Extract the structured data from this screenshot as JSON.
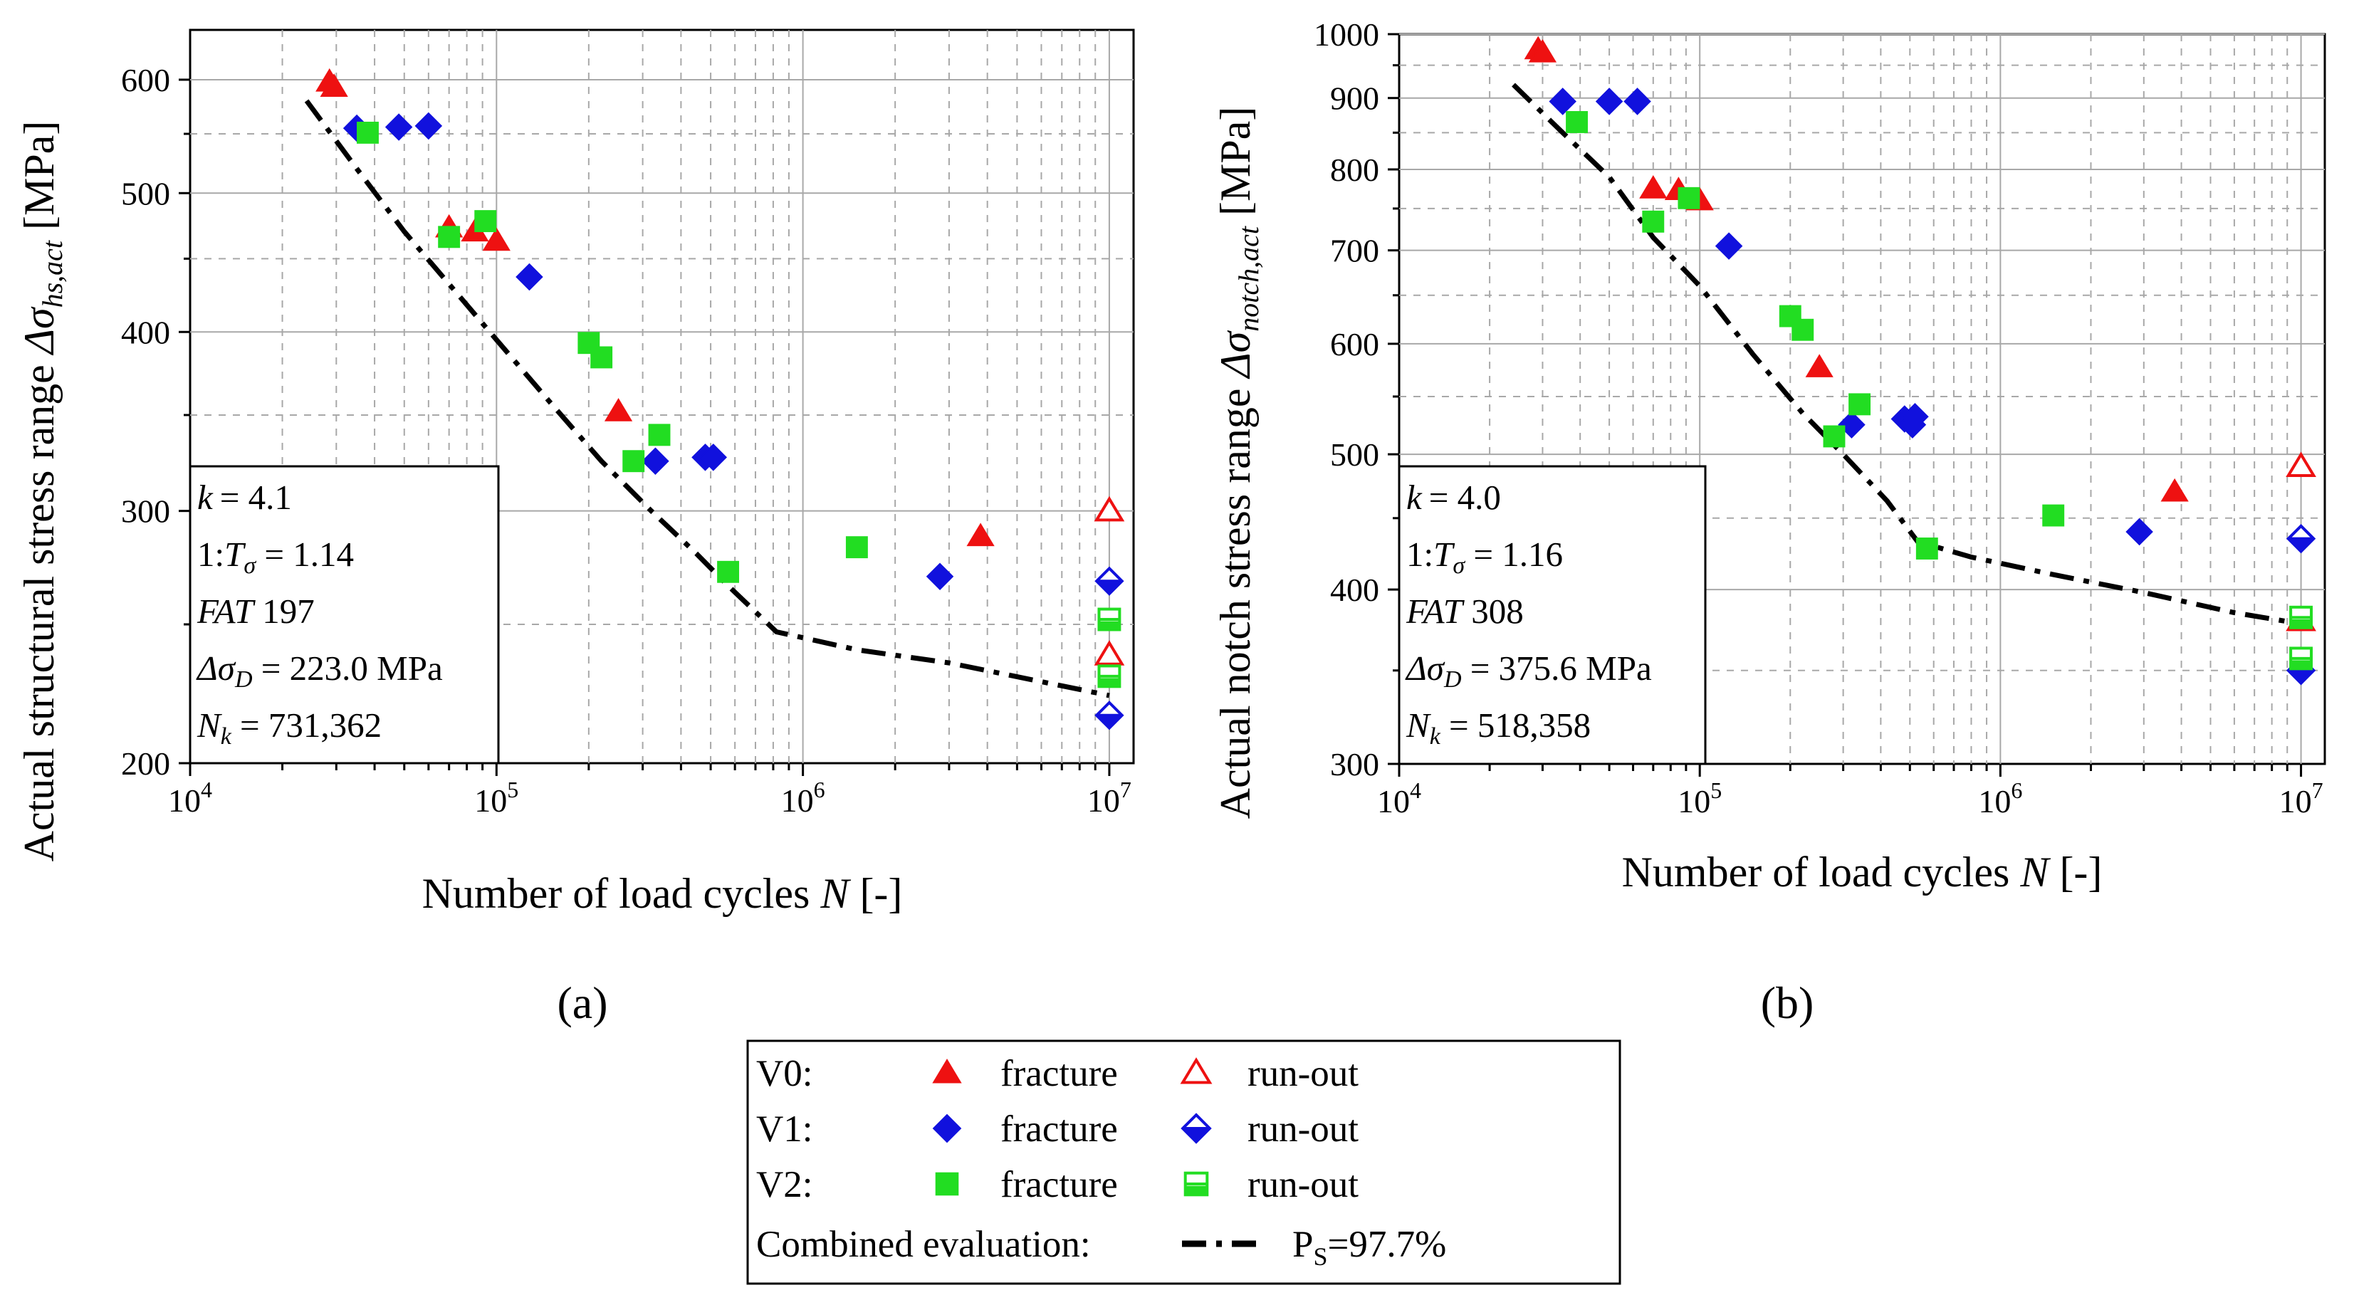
{
  "chart_data": [
    {
      "type": "scatter",
      "panel_label": "(a)",
      "xlabel": "Number of load cycles N [-]",
      "ylabel": "Actual structural stress range Δσhs,act [MPa]",
      "x_scale": "log",
      "y_scale": "log",
      "xlim": [
        10000,
        12000000
      ],
      "ylim": [
        200,
        650
      ],
      "x_ticks": [
        {
          "value": 10000,
          "base": "10",
          "exp": "4"
        },
        {
          "value": 100000,
          "base": "10",
          "exp": "5"
        },
        {
          "value": 1000000,
          "base": "10",
          "exp": "6"
        },
        {
          "value": 10000000,
          "base": "10",
          "exp": "7"
        }
      ],
      "y_ticks": [
        200,
        300,
        400,
        500,
        600
      ],
      "y_minor_ticks": [
        250,
        350,
        450,
        550
      ],
      "stats": {
        "k": "= 4.1",
        "t": "1:",
        "t_rest": " = 1.14",
        "fat": " 197",
        "sd": " = 223.0 MPa",
        "nk": " = 731,362"
      },
      "curve": [
        [
          24000,
          580
        ],
        [
          35000,
          520
        ],
        [
          50000,
          470
        ],
        [
          70000,
          432
        ],
        [
          100000,
          395
        ],
        [
          150000,
          357
        ],
        [
          220000,
          325
        ],
        [
          320000,
          300
        ],
        [
          450000,
          280
        ],
        [
          570000,
          266
        ],
        [
          820000,
          247
        ],
        [
          1500000,
          240
        ],
        [
          3000000,
          235
        ],
        [
          6000000,
          228
        ],
        [
          10000000,
          223
        ]
      ],
      "series": [
        {
          "name": "V0 fracture",
          "marker": "triangle",
          "color": "#ee1111",
          "filled": true,
          "points": [
            [
              28500,
              598
            ],
            [
              29500,
              593
            ],
            [
              70000,
              473
            ],
            [
              85000,
              470
            ],
            [
              100000,
              463
            ],
            [
              250000,
              352
            ],
            [
              3800000,
              288
            ]
          ]
        },
        {
          "name": "V0 run-out",
          "marker": "triangle",
          "color": "#ee1111",
          "filled": false,
          "points": [
            [
              10000000,
              300
            ],
            [
              10000000,
              238
            ]
          ]
        },
        {
          "name": "V1 fracture",
          "marker": "diamond",
          "color": "#1111dd",
          "filled": true,
          "points": [
            [
              35000,
              555
            ],
            [
              48000,
              556
            ],
            [
              60000,
              557
            ],
            [
              128000,
              437
            ],
            [
              330000,
              325
            ],
            [
              480000,
              327
            ],
            [
              510000,
              327
            ],
            [
              2800000,
              270
            ]
          ]
        },
        {
          "name": "V1 run-out",
          "marker": "diamond",
          "color": "#1111dd",
          "filled": false,
          "points": [
            [
              10000000,
              268
            ],
            [
              10000000,
              216
            ]
          ]
        },
        {
          "name": "V2 fracture",
          "marker": "square",
          "color": "#22dd22",
          "filled": true,
          "points": [
            [
              38000,
              551
            ],
            [
              70000,
              466
            ],
            [
              92000,
              478
            ],
            [
              200000,
              393
            ],
            [
              220000,
              384
            ],
            [
              280000,
              325
            ],
            [
              340000,
              339
            ],
            [
              570000,
              272
            ],
            [
              1500000,
              283
            ]
          ]
        },
        {
          "name": "V2 run-out",
          "marker": "square",
          "color": "#22dd22",
          "filled": false,
          "points": [
            [
              10000000,
              252
            ],
            [
              10000000,
              230
            ]
          ]
        }
      ]
    },
    {
      "type": "scatter",
      "panel_label": "(b)",
      "xlabel": "Number of load cycles N [-]",
      "ylabel": "Actual notch stress range Δσnotch,act [MPa]",
      "x_scale": "log",
      "y_scale": "log",
      "xlim": [
        10000,
        12000000
      ],
      "ylim": [
        300,
        1000
      ],
      "x_ticks": [
        {
          "value": 10000,
          "base": "10",
          "exp": "4"
        },
        {
          "value": 100000,
          "base": "10",
          "exp": "5"
        },
        {
          "value": 1000000,
          "base": "10",
          "exp": "6"
        },
        {
          "value": 10000000,
          "base": "10",
          "exp": "7"
        }
      ],
      "y_ticks": [
        300,
        400,
        500,
        600,
        700,
        800,
        900,
        1000
      ],
      "y_minor_ticks": [
        350,
        450,
        550,
        650,
        750,
        850,
        950
      ],
      "stats": {
        "k": "= 4.0",
        "t": "1:",
        "t_rest": " = 1.16",
        "fat": " 308",
        "sd": " = 375.6 MPa",
        "nk": " = 518,358"
      },
      "curve": [
        [
          24000,
          920
        ],
        [
          35000,
          850
        ],
        [
          50000,
          790
        ],
        [
          70000,
          715
        ],
        [
          100000,
          660
        ],
        [
          150000,
          590
        ],
        [
          220000,
          535
        ],
        [
          300000,
          500
        ],
        [
          420000,
          463
        ],
        [
          530000,
          433
        ],
        [
          800000,
          422
        ],
        [
          1500000,
          410
        ],
        [
          3000000,
          398
        ],
        [
          6000000,
          385
        ],
        [
          10000000,
          378
        ]
      ],
      "series": [
        {
          "name": "V0 fracture",
          "marker": "triangle",
          "color": "#ee1111",
          "filled": true,
          "points": [
            [
              29000,
              975
            ],
            [
              30000,
              970
            ],
            [
              70000,
              775
            ],
            [
              85000,
              773
            ],
            [
              100000,
              760
            ],
            [
              250000,
              577
            ],
            [
              3800000,
              470
            ]
          ]
        },
        {
          "name": "V0 run-out",
          "marker": "triangle",
          "color": "#ee1111",
          "filled": false,
          "points": [
            [
              10000000,
              490
            ],
            [
              10000000,
              380
            ]
          ]
        },
        {
          "name": "V1 fracture",
          "marker": "diamond",
          "color": "#1111dd",
          "filled": true,
          "points": [
            [
              35000,
              895
            ],
            [
              50000,
              895
            ],
            [
              62000,
              895
            ],
            [
              125000,
              705
            ],
            [
              320000,
              525
            ],
            [
              480000,
              530
            ],
            [
              510000,
              525
            ],
            [
              520000,
              532
            ],
            [
              2900000,
              440
            ]
          ]
        },
        {
          "name": "V1 run-out",
          "marker": "diamond",
          "color": "#1111dd",
          "filled": false,
          "points": [
            [
              10000000,
              435
            ],
            [
              10000000,
              350
            ]
          ]
        },
        {
          "name": "V2 fracture",
          "marker": "square",
          "color": "#22dd22",
          "filled": true,
          "points": [
            [
              39000,
              865
            ],
            [
              70000,
              734
            ],
            [
              92000,
              763
            ],
            [
              200000,
              628
            ],
            [
              220000,
              614
            ],
            [
              280000,
              515
            ],
            [
              340000,
              543
            ],
            [
              570000,
              428
            ],
            [
              1500000,
              452
            ]
          ]
        },
        {
          "name": "V2 run-out",
          "marker": "square",
          "color": "#22dd22",
          "filled": false,
          "points": [
            [
              10000000,
              382
            ],
            [
              10000000,
              357
            ]
          ]
        }
      ]
    }
  ],
  "legend": {
    "rows": [
      {
        "group": "V0:",
        "marker": "triangle",
        "color": "#ee1111",
        "fracture": "fracture",
        "runout": "run-out"
      },
      {
        "group": "V1:",
        "marker": "diamond",
        "color": "#1111dd",
        "fracture": "fracture",
        "runout": "run-out"
      },
      {
        "group": "V2:",
        "marker": "square",
        "color": "#22dd22",
        "fracture": "fracture",
        "runout": "run-out"
      }
    ],
    "combined_label": "Combined evaluation:",
    "combined_value": "P",
    "combined_sub": "S",
    "combined_rest": "=97.7%"
  }
}
